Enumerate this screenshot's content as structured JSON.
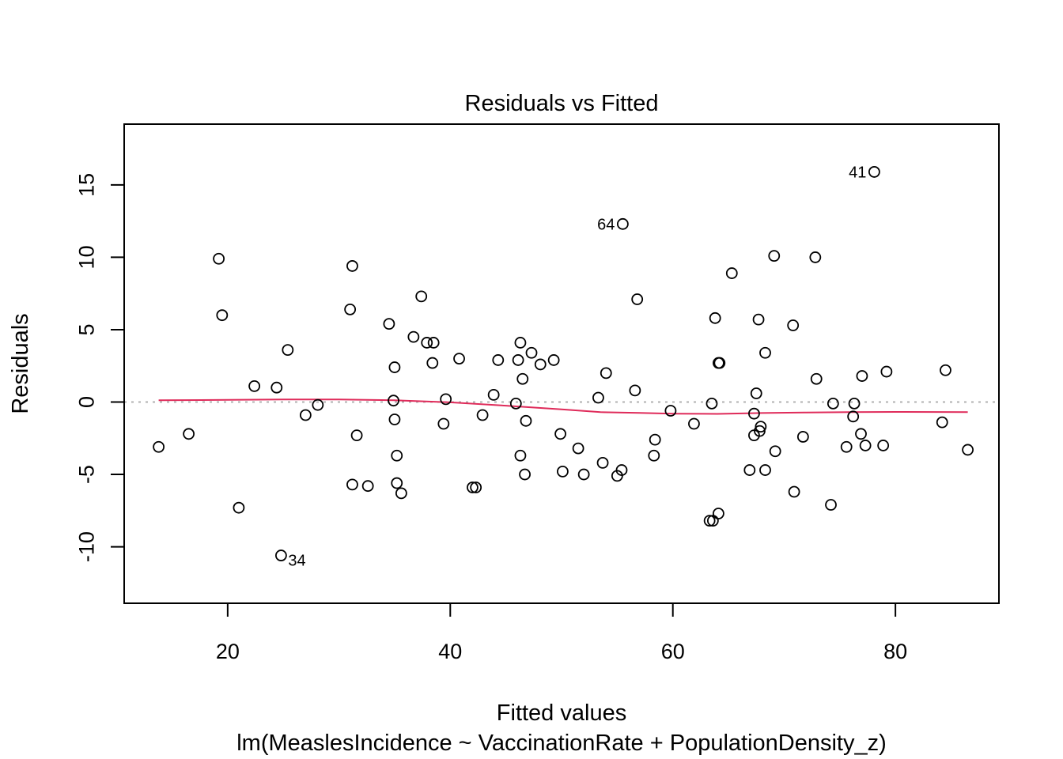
{
  "chart_data": {
    "type": "scatter",
    "title": "Residuals vs Fitted",
    "xlabel": "Fitted values",
    "subtitle": "lm(MeaslesIncidence ~ VaccinationRate + PopulationDensity_z)",
    "ylabel": "Residuals",
    "xlim": [
      10.7,
      89.3
    ],
    "ylim": [
      -13.9,
      19.2
    ],
    "xticks": [
      20,
      40,
      60,
      80
    ],
    "yticks": [
      -10,
      -5,
      0,
      5,
      10,
      15
    ],
    "reference_line": {
      "y": 0,
      "style": "dotted",
      "color": "#b0b0b0"
    },
    "point_color": "#000000",
    "smooth_color": "#df2b5a",
    "points": [
      {
        "x": 13.8,
        "y": -3.1
      },
      {
        "x": 16.5,
        "y": -2.2
      },
      {
        "x": 19.2,
        "y": 9.9
      },
      {
        "x": 19.5,
        "y": 6.0
      },
      {
        "x": 21.0,
        "y": -7.3
      },
      {
        "x": 22.4,
        "y": 1.1
      },
      {
        "x": 24.4,
        "y": 1.0
      },
      {
        "x": 24.8,
        "y": -10.6,
        "label": "34"
      },
      {
        "x": 25.4,
        "y": 3.6
      },
      {
        "x": 27.0,
        "y": -0.9
      },
      {
        "x": 28.1,
        "y": -0.2
      },
      {
        "x": 31.0,
        "y": 6.4
      },
      {
        "x": 31.2,
        "y": -5.7
      },
      {
        "x": 31.2,
        "y": 9.4
      },
      {
        "x": 31.6,
        "y": -2.3
      },
      {
        "x": 32.6,
        "y": -5.8
      },
      {
        "x": 34.5,
        "y": 5.4
      },
      {
        "x": 34.9,
        "y": 0.1
      },
      {
        "x": 35.0,
        "y": -1.2
      },
      {
        "x": 35.0,
        "y": 2.4
      },
      {
        "x": 35.2,
        "y": -3.7
      },
      {
        "x": 35.2,
        "y": -5.6
      },
      {
        "x": 35.6,
        "y": -6.3
      },
      {
        "x": 36.7,
        "y": 4.5
      },
      {
        "x": 37.4,
        "y": 7.3
      },
      {
        "x": 37.9,
        "y": 4.1
      },
      {
        "x": 38.4,
        "y": 2.7
      },
      {
        "x": 38.5,
        "y": 4.1
      },
      {
        "x": 39.4,
        "y": -1.5
      },
      {
        "x": 39.6,
        "y": 0.2
      },
      {
        "x": 40.8,
        "y": 3.0
      },
      {
        "x": 42.0,
        "y": -5.9
      },
      {
        "x": 42.3,
        "y": -5.9
      },
      {
        "x": 42.9,
        "y": -0.9
      },
      {
        "x": 43.9,
        "y": 0.5
      },
      {
        "x": 44.3,
        "y": 2.9
      },
      {
        "x": 45.9,
        "y": -0.1
      },
      {
        "x": 46.1,
        "y": 2.9
      },
      {
        "x": 46.3,
        "y": 4.1
      },
      {
        "x": 46.3,
        "y": -3.7
      },
      {
        "x": 46.5,
        "y": 1.6
      },
      {
        "x": 46.7,
        "y": -5.0
      },
      {
        "x": 46.8,
        "y": -1.3
      },
      {
        "x": 47.3,
        "y": 3.4
      },
      {
        "x": 48.1,
        "y": 2.6
      },
      {
        "x": 49.3,
        "y": 2.9
      },
      {
        "x": 49.9,
        "y": -2.2
      },
      {
        "x": 50.1,
        "y": -4.8
      },
      {
        "x": 51.5,
        "y": -3.2
      },
      {
        "x": 52.0,
        "y": -5.0
      },
      {
        "x": 53.3,
        "y": 0.3
      },
      {
        "x": 53.7,
        "y": -4.2
      },
      {
        "x": 54.0,
        "y": 2.0
      },
      {
        "x": 55.0,
        "y": -5.1
      },
      {
        "x": 55.4,
        "y": -4.7
      },
      {
        "x": 55.5,
        "y": 12.3,
        "label": "64"
      },
      {
        "x": 56.6,
        "y": 0.8
      },
      {
        "x": 56.8,
        "y": 7.1
      },
      {
        "x": 58.3,
        "y": -3.7
      },
      {
        "x": 58.4,
        "y": -2.6
      },
      {
        "x": 59.8,
        "y": -0.6
      },
      {
        "x": 61.9,
        "y": -1.5
      },
      {
        "x": 63.3,
        "y": -8.2
      },
      {
        "x": 63.5,
        "y": -0.1
      },
      {
        "x": 63.6,
        "y": -8.2
      },
      {
        "x": 63.8,
        "y": 5.8
      },
      {
        "x": 64.1,
        "y": -7.7
      },
      {
        "x": 64.1,
        "y": 2.7
      },
      {
        "x": 64.2,
        "y": 2.7
      },
      {
        "x": 65.3,
        "y": 8.9
      },
      {
        "x": 66.9,
        "y": -4.7
      },
      {
        "x": 67.3,
        "y": -0.8
      },
      {
        "x": 67.3,
        "y": -2.3
      },
      {
        "x": 67.5,
        "y": 0.6
      },
      {
        "x": 67.7,
        "y": 5.7
      },
      {
        "x": 67.8,
        "y": -2.0
      },
      {
        "x": 67.9,
        "y": -1.7
      },
      {
        "x": 68.3,
        "y": 3.4
      },
      {
        "x": 68.3,
        "y": -4.7
      },
      {
        "x": 69.1,
        "y": 10.1
      },
      {
        "x": 69.2,
        "y": -3.4
      },
      {
        "x": 70.8,
        "y": 5.3
      },
      {
        "x": 70.9,
        "y": -6.2
      },
      {
        "x": 71.7,
        "y": -2.4
      },
      {
        "x": 72.8,
        "y": 10.0
      },
      {
        "x": 72.9,
        "y": 1.6
      },
      {
        "x": 74.2,
        "y": -7.1
      },
      {
        "x": 74.4,
        "y": -0.1
      },
      {
        "x": 75.6,
        "y": -3.1
      },
      {
        "x": 76.2,
        "y": -1.0
      },
      {
        "x": 76.3,
        "y": -0.1
      },
      {
        "x": 76.9,
        "y": -2.2
      },
      {
        "x": 77.0,
        "y": 1.8
      },
      {
        "x": 77.3,
        "y": -3.0
      },
      {
        "x": 78.1,
        "y": 15.9,
        "label": "41"
      },
      {
        "x": 78.9,
        "y": -3.0
      },
      {
        "x": 79.2,
        "y": 2.1
      },
      {
        "x": 84.2,
        "y": -1.4
      },
      {
        "x": 84.5,
        "y": 2.2
      },
      {
        "x": 86.5,
        "y": -3.3
      }
    ],
    "smooth": [
      {
        "x": 13.8,
        "y": 0.12
      },
      {
        "x": 20,
        "y": 0.15
      },
      {
        "x": 25,
        "y": 0.18
      },
      {
        "x": 30,
        "y": 0.18
      },
      {
        "x": 35,
        "y": 0.12
      },
      {
        "x": 40,
        "y": -0.02
      },
      {
        "x": 45,
        "y": -0.25
      },
      {
        "x": 50,
        "y": -0.5
      },
      {
        "x": 53.5,
        "y": -0.7
      },
      {
        "x": 57,
        "y": -0.75
      },
      {
        "x": 60,
        "y": -0.8
      },
      {
        "x": 64,
        "y": -0.82
      },
      {
        "x": 68,
        "y": -0.76
      },
      {
        "x": 72,
        "y": -0.72
      },
      {
        "x": 76,
        "y": -0.7
      },
      {
        "x": 80,
        "y": -0.68
      },
      {
        "x": 86.5,
        "y": -0.7
      }
    ]
  }
}
